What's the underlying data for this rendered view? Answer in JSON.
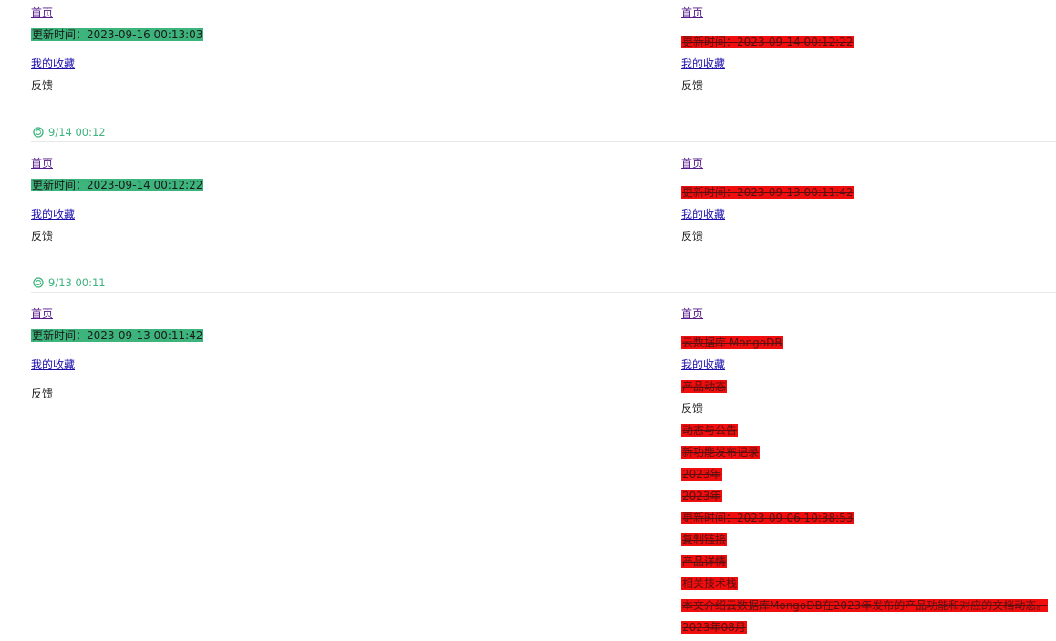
{
  "colors": {
    "added": "#3cb47c",
    "removed": "#f00d0d",
    "timestamp": "#3cb47c"
  },
  "snapshots": [
    {
      "left": {
        "home": "首页",
        "update_time": "更新时间：2023-09-16 00:13:03",
        "favorites": "我的收藏",
        "feedback": "反馈"
      },
      "right": {
        "home": "首页",
        "update_time": "更新时间：2023-09-14 00:12:22",
        "favorites": "我的收藏",
        "feedback": "反馈"
      }
    },
    {
      "timestamp": "9/14 00:12",
      "timestamp_icon": "sync-icon",
      "left": {
        "home": "首页",
        "update_time": "更新时间：2023-09-14 00:12:22",
        "favorites": "我的收藏",
        "feedback": "反馈"
      },
      "right": {
        "home": "首页",
        "update_time": "更新时间：2023-09-13 00:11:42",
        "favorites": "我的收藏",
        "feedback": "反馈"
      }
    },
    {
      "timestamp": "9/13 00:11",
      "timestamp_icon": "sync-icon",
      "left": {
        "home": "首页",
        "update_time": "更新时间：2023-09-13 00:11:42",
        "favorites": "我的收藏",
        "feedback": "反馈"
      },
      "right": {
        "home": "首页",
        "cloud_db": "云数据库 MongoDB",
        "favorites": "我的收藏",
        "product_news": "产品动态",
        "feedback": "反馈",
        "release_notes": "动态与公告",
        "feature_log": "新功能发布记录",
        "year_1": "2023年",
        "year_2": "2023年",
        "update_time": "更新时间：2023-09-06 10:38:53",
        "copy_link": "复制链接",
        "product_pricing": "产品详情",
        "related_docs": "相关技术栈",
        "summary": "本文介绍云数据库MongoDB在2023年发布的产品功能和对应的文档动态。",
        "month": "2023年08月"
      }
    }
  ]
}
